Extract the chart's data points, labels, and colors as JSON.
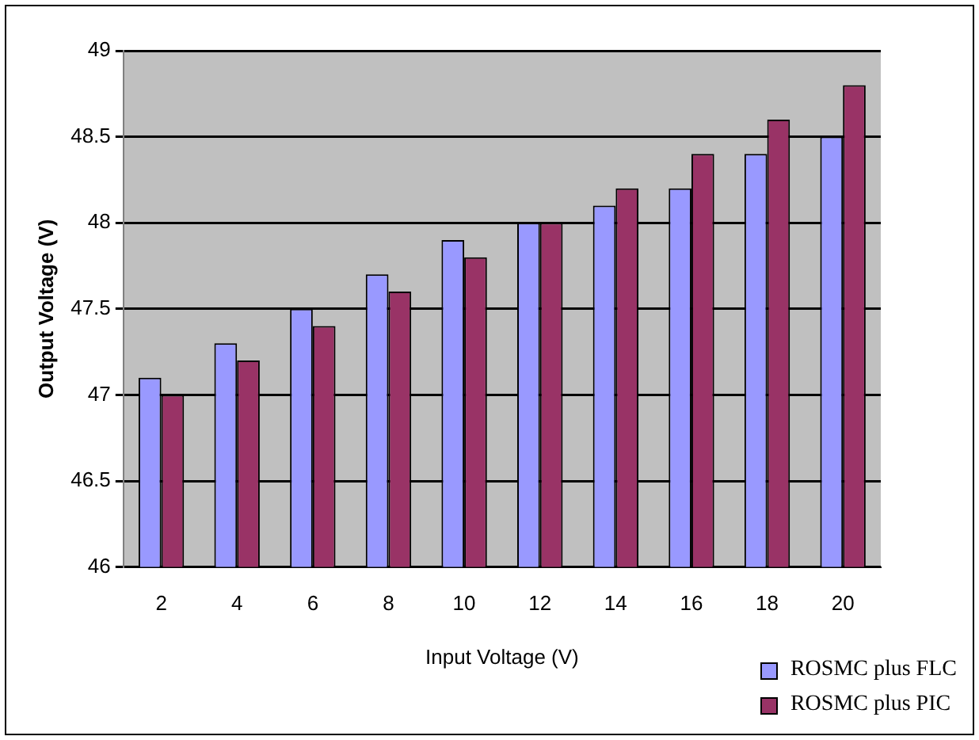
{
  "chart_data": {
    "type": "bar",
    "xlabel": "Input Voltage (V)",
    "ylabel": "Output Voltage (V)",
    "categories": [
      "2",
      "4",
      "6",
      "8",
      "10",
      "12",
      "14",
      "16",
      "18",
      "20"
    ],
    "series": [
      {
        "name": "ROSMC plus FLC",
        "color": "#9999ff",
        "values": [
          47.1,
          47.3,
          47.5,
          47.7,
          47.9,
          48,
          48.1,
          48.2,
          48.4,
          48.5
        ]
      },
      {
        "name": "ROSMC plus PIC",
        "color": "#993366",
        "values": [
          47,
          47.2,
          47.4,
          47.6,
          47.8,
          48,
          48.2,
          48.4,
          48.6,
          48.8
        ]
      }
    ],
    "ylim": [
      46,
      49
    ],
    "yticks": [
      46,
      46.5,
      47,
      47.5,
      48,
      48.5,
      49
    ],
    "grid": "y",
    "legend": "bottom right"
  }
}
